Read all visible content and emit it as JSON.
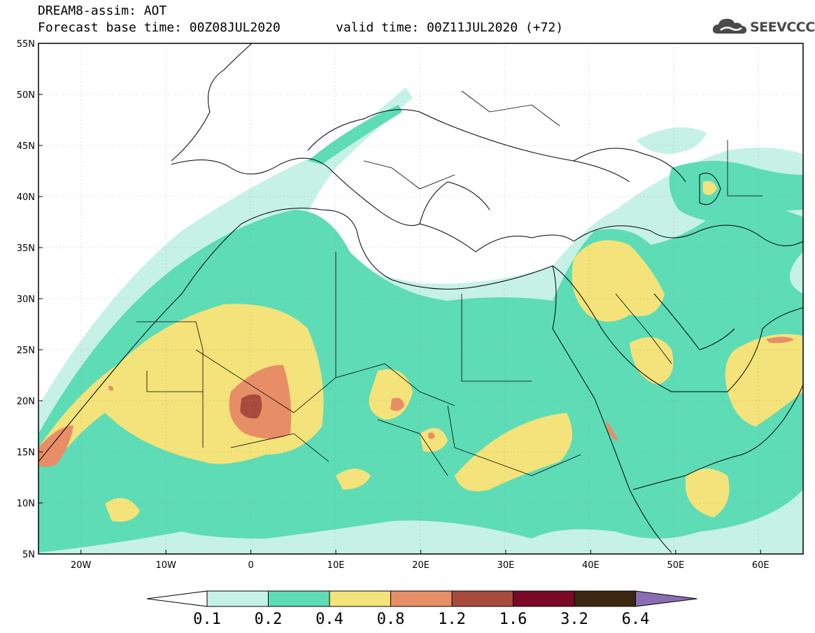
{
  "header": {
    "title_line1": "DREAM8-assim: AOT",
    "title_line2": "Forecast base time: 00Z08JUL2020",
    "valid_time": "valid time: 00Z11JUL2020 (+72)",
    "logo_text": "SEEVCCC",
    "logo_icon": "cloud-icon"
  },
  "map": {
    "lat_labels": [
      "55N",
      "50N",
      "45N",
      "40N",
      "35N",
      "30N",
      "25N",
      "20N",
      "15N",
      "10N",
      "5N"
    ],
    "lon_labels": [
      "20W",
      "10W",
      "0",
      "10E",
      "20E",
      "30E",
      "40E",
      "50E",
      "60E"
    ]
  },
  "colorbar": {
    "labels": [
      "0.1",
      "0.2",
      "0.4",
      "0.8",
      "1.2",
      "1.6",
      "3.2",
      "6.4"
    ],
    "colors": [
      "#c6f1e7",
      "#5ddcb6",
      "#f3e37a",
      "#e88e67",
      "#a84a3c",
      "#7a0826",
      "#3b2611",
      "#8b6db4"
    ],
    "under_color": "#ffffff"
  },
  "palette": {
    "c01": "#c6f1e7",
    "c02": "#5ddcb6",
    "c04": "#f3e37a",
    "c08": "#e88e67",
    "c12": "#a84a3c"
  }
}
